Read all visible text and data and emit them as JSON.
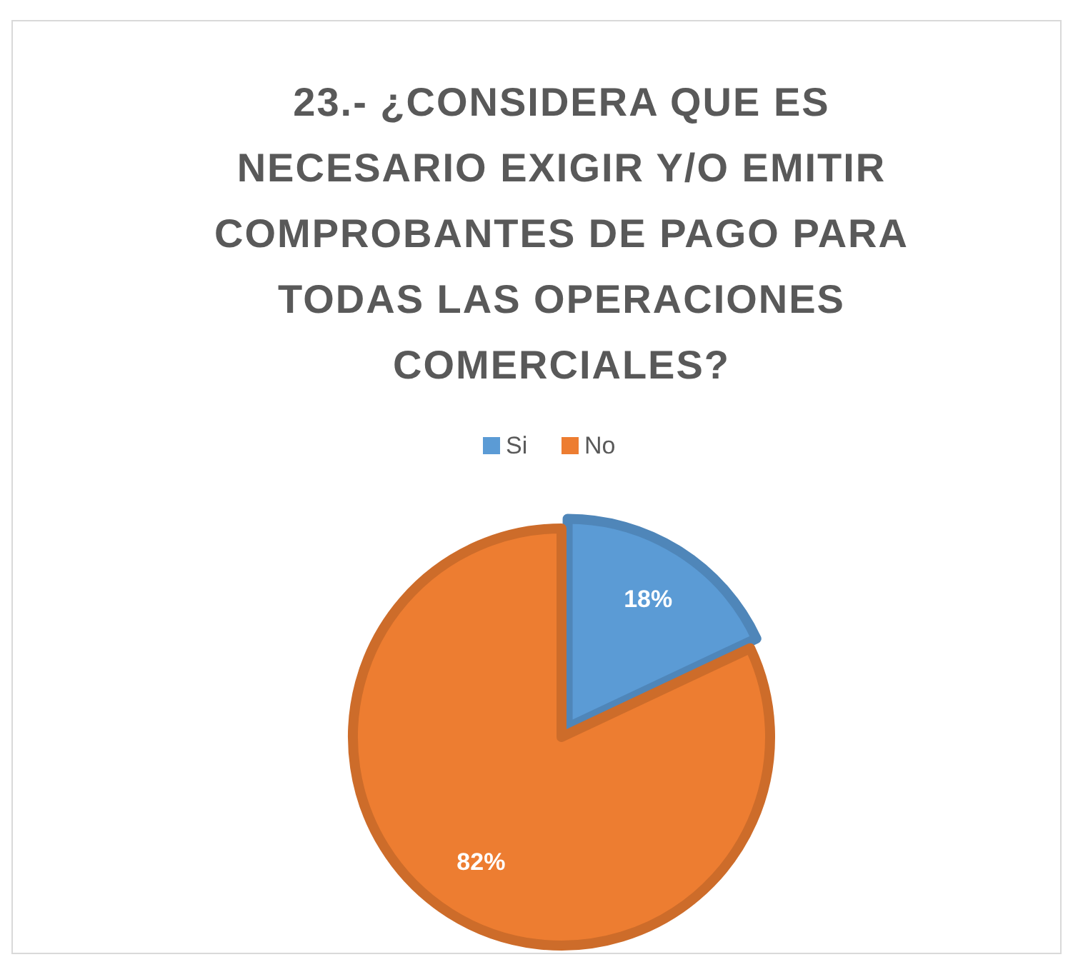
{
  "chart_data": {
    "type": "pie",
    "title": "23.- ¿CONSIDERA QUE ES NECESARIO EXIGIR Y/O EMITIR COMPROBANTES DE PAGO PARA TODAS LAS OPERACIONES COMERCIALES?",
    "categories": [
      "Si",
      "No"
    ],
    "values": [
      18,
      82
    ],
    "colors": [
      "#5b9bd5",
      "#ed7d31"
    ],
    "legend": "top",
    "value_labels": [
      "18%",
      "82%"
    ]
  }
}
